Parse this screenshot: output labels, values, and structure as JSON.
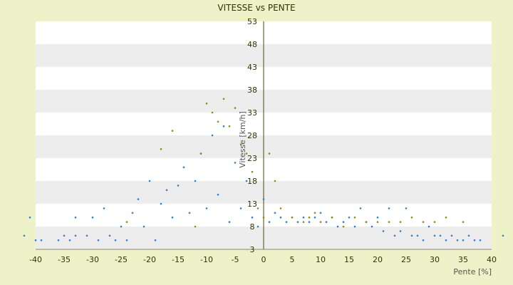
{
  "chart_data": {
    "type": "scatter",
    "title": "VITESSE vs PENTE",
    "xlabel": "Pente [%]",
    "ylabel": "Vitesse [km/h]",
    "xlim": [
      -40,
      40
    ],
    "ylim": [
      3,
      53
    ],
    "x_ticks": [
      -40,
      -35,
      -30,
      -25,
      -20,
      -15,
      -10,
      -5,
      0,
      5,
      10,
      15,
      20,
      25,
      30,
      35,
      40
    ],
    "y_ticks": [
      3,
      8,
      13,
      18,
      23,
      28,
      33,
      38,
      43,
      48,
      53
    ],
    "grid": "horizontal alternating bands",
    "series": [
      {
        "color": "#2a7fd4",
        "points": [
          [
            -42,
            6
          ],
          [
            -41,
            10
          ],
          [
            -40,
            5
          ],
          [
            -39,
            5
          ],
          [
            -36,
            5
          ],
          [
            -35,
            6
          ],
          [
            -34,
            5
          ],
          [
            -33,
            6
          ],
          [
            -33,
            10
          ],
          [
            -31,
            6
          ],
          [
            -30,
            10
          ],
          [
            -29,
            5
          ],
          [
            -28,
            12
          ],
          [
            -27,
            6
          ],
          [
            -26,
            5
          ],
          [
            -25,
            8
          ],
          [
            -24,
            5
          ],
          [
            -23,
            11
          ],
          [
            -22,
            14
          ],
          [
            -21,
            8
          ],
          [
            -20,
            18
          ],
          [
            -19,
            5
          ],
          [
            -18,
            13
          ],
          [
            -17,
            16
          ],
          [
            -16,
            10
          ],
          [
            -15,
            17
          ],
          [
            -14,
            21
          ],
          [
            -13,
            11
          ],
          [
            -12,
            18
          ],
          [
            -11,
            24
          ],
          [
            -10,
            12
          ],
          [
            -9,
            28
          ],
          [
            -8,
            15
          ],
          [
            -7,
            30
          ],
          [
            -6,
            9
          ],
          [
            -5,
            22
          ],
          [
            -4,
            12
          ],
          [
            -3,
            18
          ],
          [
            -2,
            10
          ],
          [
            -1,
            8
          ],
          [
            0,
            14
          ],
          [
            1,
            9
          ],
          [
            2,
            11
          ],
          [
            3,
            10
          ],
          [
            4,
            9
          ],
          [
            5,
            10
          ],
          [
            6,
            9
          ],
          [
            7,
            10
          ],
          [
            8,
            9
          ],
          [
            9,
            10
          ],
          [
            10,
            11
          ],
          [
            11,
            9
          ],
          [
            12,
            10
          ],
          [
            13,
            8
          ],
          [
            14,
            9
          ],
          [
            15,
            10
          ],
          [
            16,
            8
          ],
          [
            17,
            12
          ],
          [
            18,
            9
          ],
          [
            19,
            8
          ],
          [
            20,
            10
          ],
          [
            21,
            7
          ],
          [
            22,
            12
          ],
          [
            23,
            6
          ],
          [
            24,
            7
          ],
          [
            25,
            12
          ],
          [
            26,
            6
          ],
          [
            27,
            6
          ],
          [
            28,
            5
          ],
          [
            29,
            8
          ],
          [
            30,
            6
          ],
          [
            31,
            6
          ],
          [
            32,
            5
          ],
          [
            33,
            6
          ],
          [
            34,
            5
          ],
          [
            35,
            5
          ],
          [
            36,
            6
          ],
          [
            37,
            5
          ],
          [
            38,
            5
          ],
          [
            42,
            6
          ]
        ]
      },
      {
        "color": "#8a8a1a",
        "points": [
          [
            -24,
            9
          ],
          [
            -18,
            25
          ],
          [
            -16,
            29
          ],
          [
            -12,
            8
          ],
          [
            -11,
            24
          ],
          [
            -10,
            35
          ],
          [
            -9,
            33
          ],
          [
            -8,
            31
          ],
          [
            -7,
            36
          ],
          [
            -6,
            30
          ],
          [
            -5,
            34
          ],
          [
            -4,
            26
          ],
          [
            -3,
            24
          ],
          [
            -2,
            20
          ],
          [
            -1,
            12
          ],
          [
            0,
            10
          ],
          [
            1,
            24
          ],
          [
            2,
            18
          ],
          [
            3,
            12
          ],
          [
            5,
            10
          ],
          [
            7,
            9
          ],
          [
            8,
            10
          ],
          [
            9,
            11
          ],
          [
            10,
            9
          ],
          [
            12,
            10
          ],
          [
            14,
            8
          ],
          [
            16,
            10
          ],
          [
            18,
            9
          ],
          [
            20,
            9
          ],
          [
            22,
            9
          ],
          [
            24,
            9
          ],
          [
            26,
            10
          ],
          [
            28,
            9
          ],
          [
            30,
            9
          ],
          [
            32,
            10
          ],
          [
            35,
            9
          ]
        ]
      }
    ]
  }
}
